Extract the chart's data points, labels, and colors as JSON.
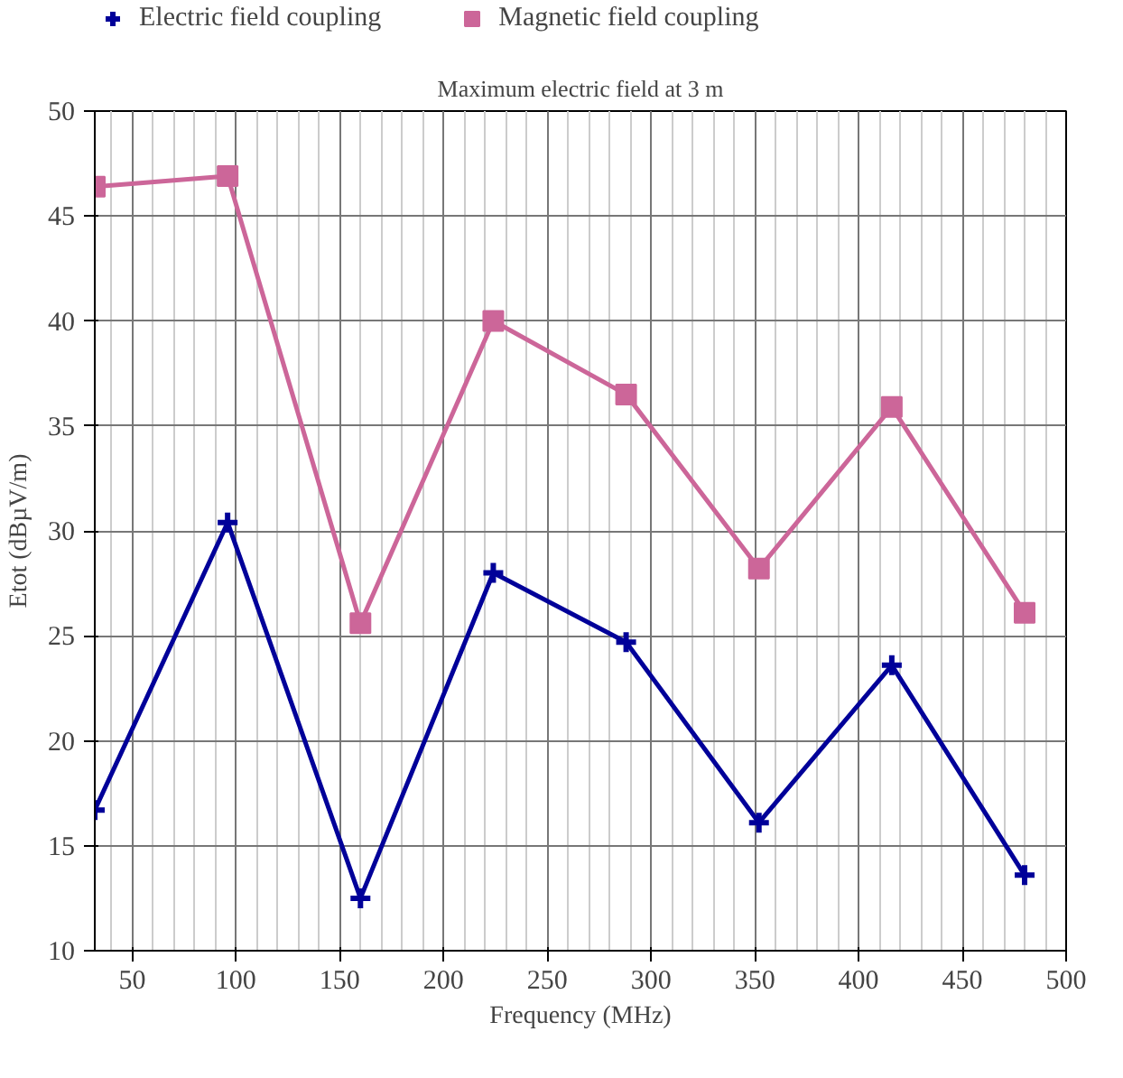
{
  "chart_data": {
    "type": "line",
    "title": "Maximum electric field at 3 m",
    "xlabel": "Frequency (MHz)",
    "ylabel": "Etot (dBµV/m)",
    "x": [
      32,
      96,
      160,
      224,
      288,
      352,
      416,
      480
    ],
    "series": [
      {
        "name": "Electric field coupling",
        "color": "#000099",
        "marker": "cross",
        "values": [
          16.7,
          30.4,
          12.5,
          28.0,
          24.7,
          16.1,
          23.6,
          13.6
        ]
      },
      {
        "name": "Magnetic field coupling",
        "color": "#cc6699",
        "marker": "square",
        "values": [
          46.4,
          46.9,
          25.6,
          40.0,
          36.5,
          28.2,
          35.9,
          26.1
        ]
      }
    ],
    "xlim": [
      32,
      500
    ],
    "xticks": [
      50,
      100,
      150,
      200,
      250,
      300,
      350,
      400,
      450,
      500
    ],
    "ylim": [
      10,
      50
    ],
    "yticks": [
      10,
      15,
      20,
      25,
      30,
      35,
      40,
      45,
      50
    ],
    "grid": true,
    "legend": "top left",
    "line_style": "solid"
  }
}
